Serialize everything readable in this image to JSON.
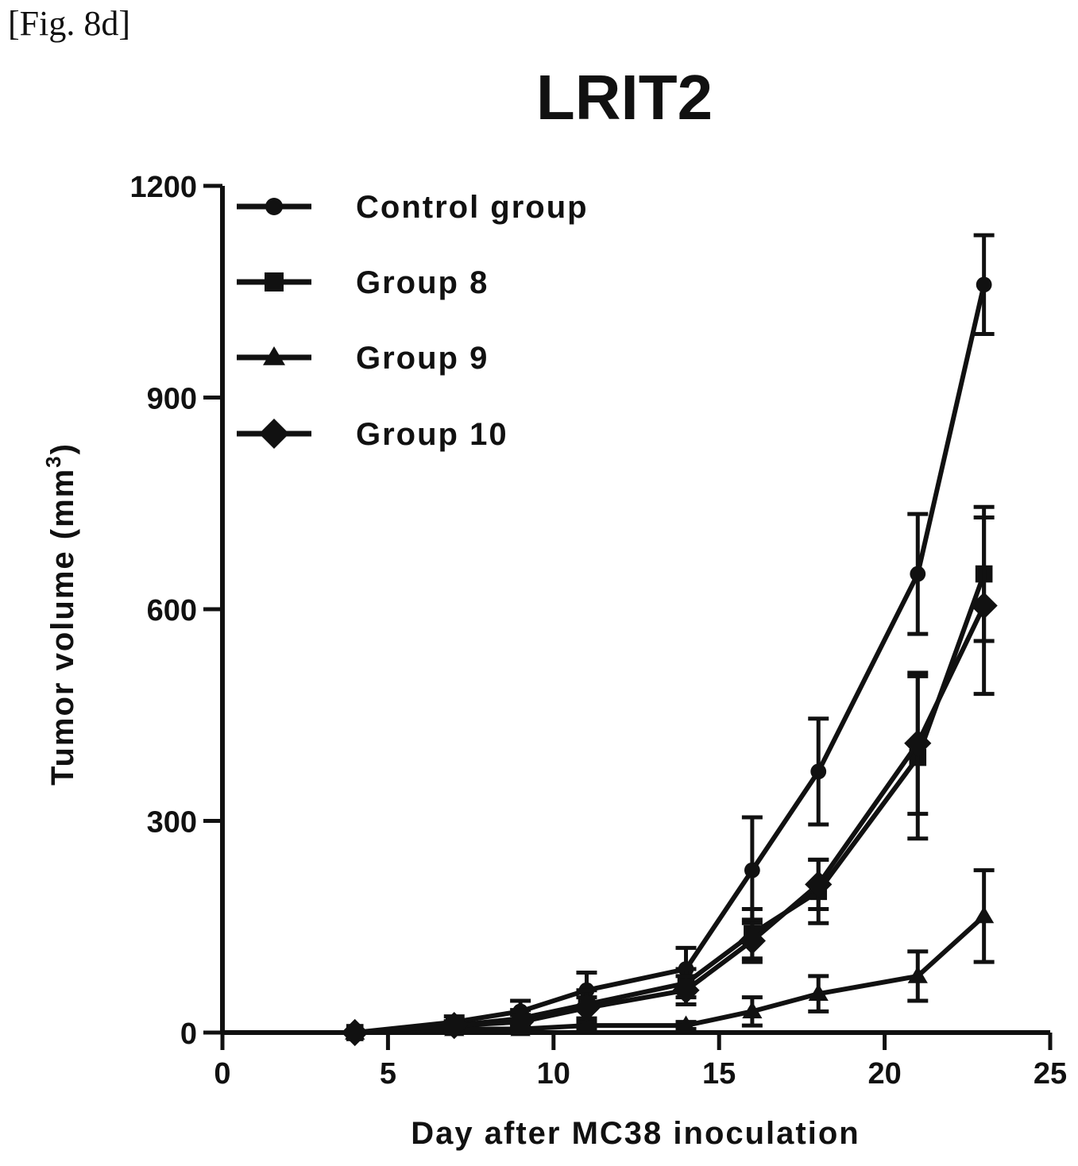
{
  "figure_label": "[Fig. 8d]",
  "colors": {
    "ink": "#111111",
    "background": "#ffffff"
  },
  "chart_data": {
    "type": "line",
    "title": "LRIT2",
    "xlabel": "Day after MC38 inoculation",
    "ylabel": "Tumor volume (mm",
    "ylabel_superscript": "3",
    "ylabel_close": ")",
    "xlim": [
      0,
      25
    ],
    "ylim": [
      0,
      1200
    ],
    "xticks": [
      0,
      5,
      10,
      15,
      20,
      25
    ],
    "yticks": [
      0,
      300,
      600,
      900,
      1200
    ],
    "legend_position": "top-left",
    "series": [
      {
        "name": "Control group",
        "marker": "circle",
        "x": [
          4,
          7,
          9,
          11,
          14,
          16,
          18,
          21,
          23
        ],
        "y": [
          0,
          15,
          30,
          60,
          90,
          230,
          370,
          650,
          1060
        ],
        "err": [
          0,
          8,
          15,
          25,
          30,
          75,
          75,
          85,
          70
        ]
      },
      {
        "name": "Group 8",
        "marker": "square",
        "x": [
          4,
          7,
          9,
          11,
          14,
          16,
          18,
          21,
          23
        ],
        "y": [
          0,
          10,
          20,
          40,
          70,
          140,
          200,
          390,
          650
        ],
        "err": [
          0,
          6,
          12,
          20,
          20,
          35,
          45,
          115,
          95
        ]
      },
      {
        "name": "Group 9",
        "marker": "triangle",
        "x": [
          4,
          7,
          9,
          11,
          14,
          16,
          18,
          21,
          23
        ],
        "y": [
          0,
          5,
          5,
          10,
          10,
          30,
          55,
          80,
          165
        ],
        "err": [
          0,
          4,
          5,
          5,
          5,
          20,
          25,
          35,
          65
        ]
      },
      {
        "name": "Group 10",
        "marker": "diamond",
        "x": [
          4,
          7,
          9,
          11,
          14,
          16,
          18,
          21,
          23
        ],
        "y": [
          0,
          10,
          15,
          35,
          60,
          130,
          210,
          410,
          605
        ],
        "err": [
          0,
          6,
          10,
          15,
          20,
          30,
          35,
          100,
          125
        ]
      }
    ]
  }
}
